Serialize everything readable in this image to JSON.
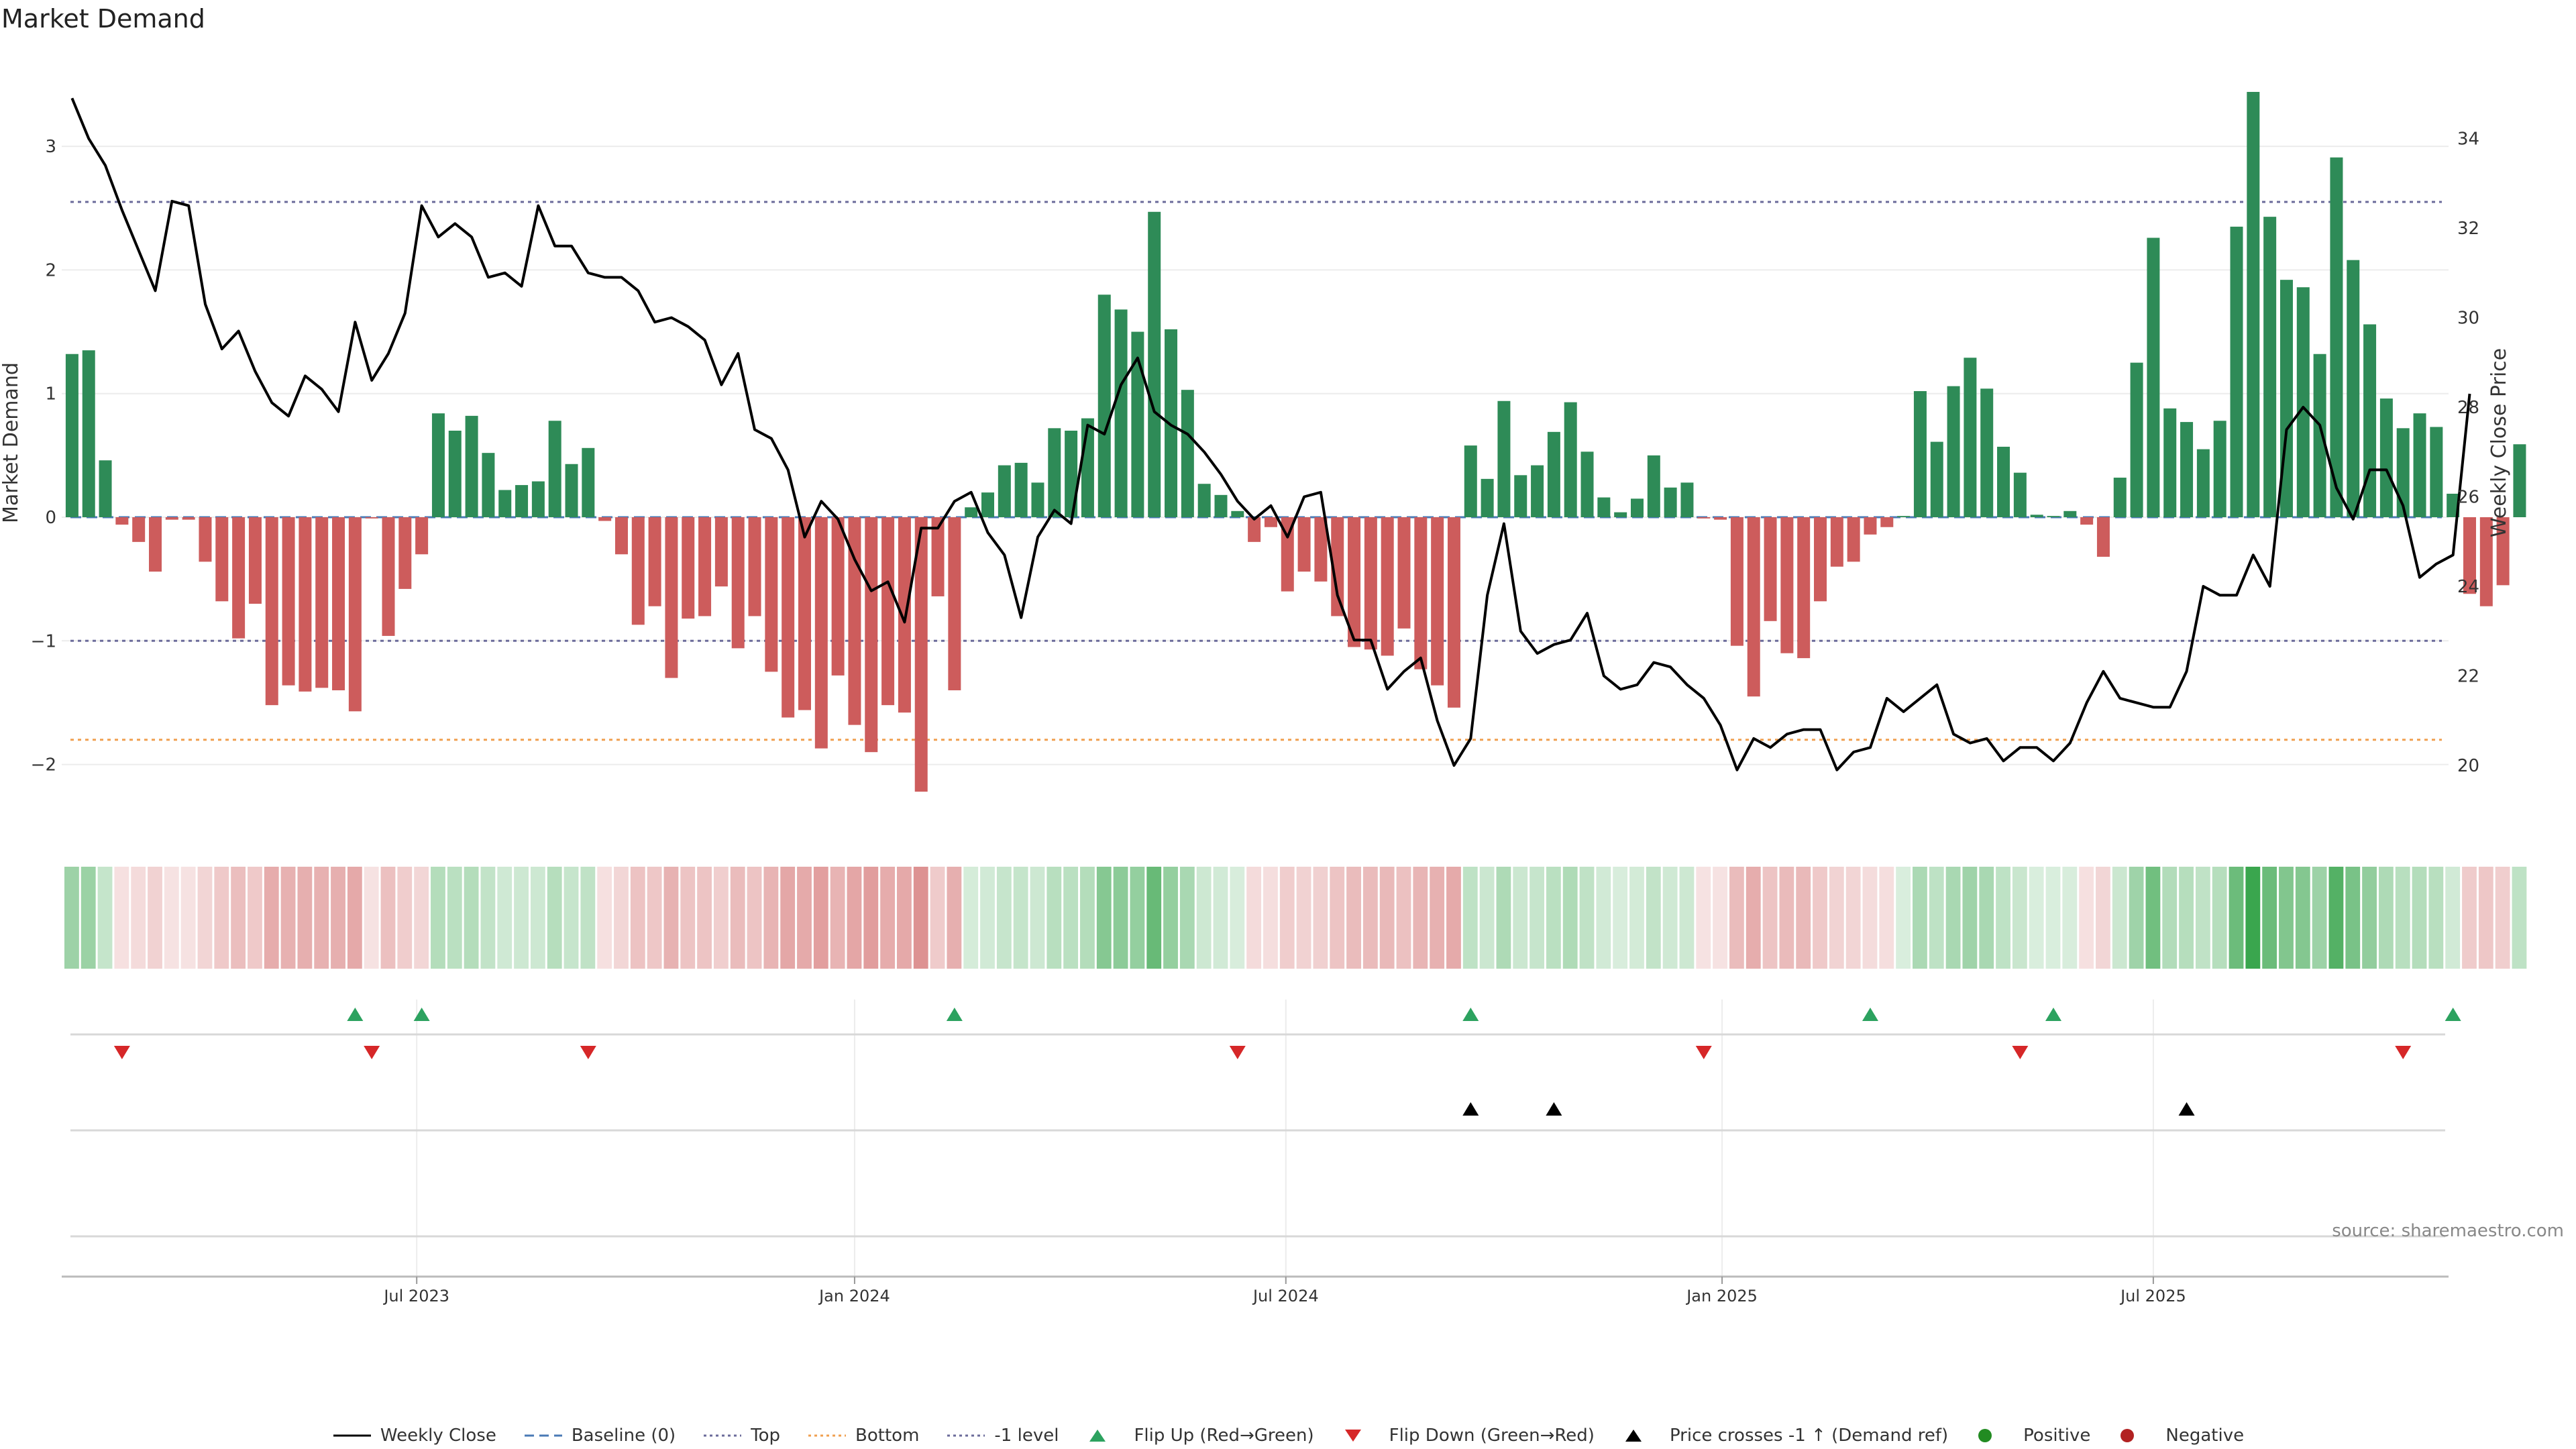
{
  "title": "Market Demand",
  "source": "source: sharemaestro.com",
  "colors": {
    "positive_bar": "#2e8b57",
    "negative_bar": "#cd5c5c",
    "price_line": "#000000",
    "top_line": "#6b6b9a",
    "bottom_line": "#f0a050",
    "minus1_line": "#6b6b9a",
    "baseline": "#4a7ab5",
    "flip_up": "#2ca25f",
    "flip_down": "#d62728",
    "cross_up": "#000000",
    "positive_dot": "#228b22",
    "negative_dot": "#b22222"
  },
  "chart_data": {
    "type": "bar",
    "title": "Market Demand",
    "x_start": "2023-02-06",
    "x_interval": "weekly",
    "x_tick_labels": [
      "Jul 2023",
      "Jan 2024",
      "Jul 2024",
      "Jan 2025",
      "Jul 2025"
    ],
    "ylabel_left": "Market Demand",
    "ylabel_right": "Weekly Close Price",
    "ylim_left": [
      -2.55,
      3.75
    ],
    "yticks_left": [
      3,
      2,
      1,
      0,
      -1,
      -2
    ],
    "yticks_left_labels": [
      "3",
      "2",
      "1",
      "0",
      "−1",
      "−2"
    ],
    "ylim_right": [
      19.06,
      35.92
    ],
    "yticks_right": [
      34,
      32,
      30,
      28,
      26,
      24,
      22,
      20
    ],
    "levels": {
      "top": 2.55,
      "bottom": -1.8,
      "minus1": -1.0,
      "baseline": 0
    },
    "series": [
      {
        "name": "Market Demand",
        "axis": "left",
        "values": [
          1.32,
          1.35,
          0.46,
          -0.06,
          -0.2,
          -0.44,
          -0.02,
          -0.02,
          -0.36,
          -0.68,
          -0.98,
          -0.7,
          -1.52,
          -1.36,
          -1.41,
          -1.38,
          -1.4,
          -1.57,
          -0.01,
          -0.96,
          -0.58,
          -0.3,
          0.84,
          0.7,
          0.82,
          0.52,
          0.22,
          0.26,
          0.29,
          0.78,
          0.43,
          0.56,
          -0.03,
          -0.3,
          -0.87,
          -0.72,
          -1.3,
          -0.82,
          -0.8,
          -0.56,
          -1.06,
          -0.8,
          -1.25,
          -1.62,
          -1.56,
          -1.87,
          -1.28,
          -1.68,
          -1.9,
          -1.52,
          -1.58,
          -2.22,
          -0.64,
          -1.4,
          0.08,
          0.2,
          0.42,
          0.44,
          0.28,
          0.72,
          0.7,
          0.8,
          1.8,
          1.68,
          1.5,
          2.47,
          1.52,
          1.03,
          0.27,
          0.18,
          0.05,
          -0.2,
          -0.08,
          -0.6,
          -0.44,
          -0.52,
          -0.8,
          -1.05,
          -1.07,
          -1.12,
          -0.9,
          -1.23,
          -1.36,
          -1.54,
          0.58,
          0.31,
          0.94,
          0.34,
          0.42,
          0.69,
          0.93,
          0.53,
          0.16,
          0.04,
          0.15,
          0.5,
          0.24,
          0.28,
          -0.01,
          -0.02,
          -1.04,
          -1.45,
          -0.84,
          -1.1,
          -1.14,
          -0.68,
          -0.4,
          -0.36,
          -0.14,
          -0.08,
          0.01,
          1.02,
          0.61,
          1.06,
          1.29,
          1.04,
          0.57,
          0.36,
          0.02,
          0.01,
          0.05,
          -0.06,
          -0.32,
          0.32,
          1.25,
          2.26,
          0.88,
          0.77,
          0.55,
          0.78,
          2.35,
          3.44,
          2.43,
          1.92,
          1.86,
          1.32,
          2.91,
          2.08,
          1.56,
          0.96,
          0.72,
          0.84,
          0.73,
          0.19,
          -0.62,
          -0.72,
          -0.55,
          0.59
        ]
      },
      {
        "name": "Weekly Close",
        "axis": "right",
        "values": [
          34.9,
          34.0,
          33.4,
          32.4,
          31.5,
          30.6,
          32.6,
          32.5,
          30.3,
          29.3,
          29.7,
          28.8,
          28.1,
          27.8,
          28.7,
          28.4,
          27.9,
          29.9,
          28.6,
          29.2,
          30.1,
          32.5,
          31.8,
          32.1,
          31.8,
          30.9,
          31.0,
          30.7,
          32.5,
          31.6,
          31.6,
          31.0,
          30.9,
          30.9,
          30.6,
          29.9,
          30.0,
          29.8,
          29.5,
          28.5,
          29.2,
          27.5,
          27.3,
          26.6,
          25.1,
          25.9,
          25.5,
          24.6,
          23.9,
          24.1,
          23.2,
          25.3,
          25.3,
          25.9,
          26.1,
          25.2,
          24.7,
          23.3,
          25.1,
          25.7,
          25.4,
          27.6,
          27.4,
          28.5,
          29.1,
          27.9,
          27.6,
          27.4,
          27.0,
          26.5,
          25.9,
          25.5,
          25.8,
          25.1,
          26.0,
          26.1,
          23.8,
          22.8,
          22.8,
          21.7,
          22.1,
          22.4,
          21.0,
          20.0,
          20.6,
          23.8,
          25.4,
          23.0,
          22.5,
          22.7,
          22.8,
          23.4,
          22.0,
          21.7,
          21.8,
          22.3,
          22.2,
          21.8,
          21.5,
          20.9,
          19.9,
          20.6,
          20.4,
          20.7,
          20.8,
          20.8,
          19.9,
          20.3,
          20.4,
          21.5,
          21.2,
          21.5,
          21.8,
          20.7,
          20.5,
          20.6,
          20.1,
          20.4,
          20.4,
          20.1,
          20.5,
          21.4,
          22.1,
          21.5,
          21.4,
          21.3,
          21.3,
          22.1,
          24.0,
          23.8,
          23.8,
          24.7,
          24.0,
          27.5,
          28.0,
          27.6,
          26.2,
          25.5,
          26.6,
          26.6,
          25.8,
          24.2,
          24.5,
          24.7,
          28.3
        ]
      }
    ]
  },
  "heat_strip": {
    "description": "Per-week color intensity strip mirroring Market Demand sign and magnitude"
  },
  "signals": {
    "flip_up_weeks": [
      17,
      21,
      53,
      84,
      108,
      119,
      143
    ],
    "flip_down_weeks": [
      3,
      18,
      31,
      70,
      98,
      117,
      140
    ],
    "price_cross_weeks": [
      84,
      89,
      127
    ]
  },
  "legend": {
    "items": [
      {
        "key": "price",
        "label": "Weekly Close"
      },
      {
        "key": "baseline",
        "label": "Baseline (0)"
      },
      {
        "key": "top",
        "label": "Top"
      },
      {
        "key": "bottom",
        "label": "Bottom"
      },
      {
        "key": "minus1",
        "label": "-1 level"
      },
      {
        "key": "flip_up",
        "label": "Flip Up (Red→Green)"
      },
      {
        "key": "flip_down",
        "label": "Flip Down (Green→Red)"
      },
      {
        "key": "cross",
        "label": "Price crosses -1 ↑ (Demand ref)"
      },
      {
        "key": "positive",
        "label": "Positive"
      },
      {
        "key": "negative",
        "label": "Negative"
      }
    ]
  }
}
